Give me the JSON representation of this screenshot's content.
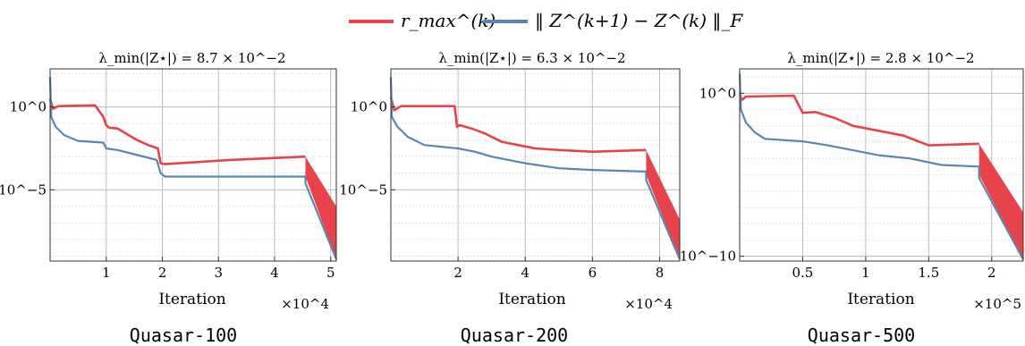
{
  "legend": {
    "entries": [
      {
        "label": "r_max^(k)",
        "color": "#e8424b"
      },
      {
        "label": "‖ Z^(k+1) − Z^(k) ‖_F",
        "color": "#5a86b0"
      }
    ]
  },
  "chart_data": [
    {
      "type": "line",
      "caption": "Quasar-100",
      "title": "λ_min(|Z⋆|) = 8.7 × 10^−2",
      "xlabel": "Iteration",
      "x_multiplier": "×10^4",
      "y_log": true,
      "xlim": [
        0,
        5.1
      ],
      "ylim_exp": [
        -9.3,
        2.3
      ],
      "x_ticks": [
        1,
        2,
        3,
        4,
        5
      ],
      "y_ticks": [
        {
          "exp": 0,
          "label": "10^0"
        },
        {
          "exp": -5,
          "label": "10^−5"
        }
      ],
      "grid": true,
      "series": [
        {
          "name": "r_max^(k)",
          "color": "#e8424b",
          "points": [
            [
              0,
              0.5
            ],
            [
              0.05,
              -0.1
            ],
            [
              0.15,
              0.05
            ],
            [
              0.8,
              0.1
            ],
            [
              0.95,
              -0.6
            ],
            [
              1.0,
              -1.1
            ],
            [
              1.05,
              -1.25
            ],
            [
              1.2,
              -1.3
            ],
            [
              1.35,
              -1.6
            ],
            [
              1.55,
              -2.0
            ],
            [
              1.75,
              -2.3
            ],
            [
              1.92,
              -2.5
            ],
            [
              1.97,
              -3.4
            ],
            [
              2.05,
              -3.45
            ],
            [
              3.2,
              -3.2
            ],
            [
              4.55,
              -3.0
            ]
          ],
          "band": {
            "x": [
              4.55,
              5.1
            ],
            "upper": [
              -3.0,
              -6.0
            ],
            "lower": [
              -4.2,
              -9.2
            ]
          }
        },
        {
          "name": "‖ Z^(k+1) − Z^(k) ‖_F",
          "color": "#5a86b0",
          "points": [
            [
              0,
              1.8
            ],
            [
              0.02,
              -0.6
            ],
            [
              0.1,
              -1.2
            ],
            [
              0.25,
              -1.7
            ],
            [
              0.5,
              -2.05
            ],
            [
              0.95,
              -2.15
            ],
            [
              1.0,
              -2.5
            ],
            [
              1.2,
              -2.6
            ],
            [
              1.5,
              -2.85
            ],
            [
              1.9,
              -3.2
            ],
            [
              1.97,
              -4.0
            ],
            [
              2.05,
              -4.2
            ],
            [
              4.55,
              -4.2
            ],
            [
              4.55,
              -4.6
            ],
            [
              5.1,
              -9.2
            ]
          ]
        }
      ]
    },
    {
      "type": "line",
      "caption": "Quasar-200",
      "title": "λ_min(|Z⋆|) = 6.3 × 10^−2",
      "xlabel": "Iteration",
      "x_multiplier": "×10^4",
      "y_log": true,
      "xlim": [
        0,
        8.6
      ],
      "ylim_exp": [
        -9.3,
        2.3
      ],
      "x_ticks": [
        2,
        4,
        6,
        8
      ],
      "y_ticks": [
        {
          "exp": 0,
          "label": "10^0"
        },
        {
          "exp": -5,
          "label": "10^−5"
        }
      ],
      "grid": true,
      "series": [
        {
          "name": "r_max^(k)",
          "color": "#e8424b",
          "points": [
            [
              0,
              0.6
            ],
            [
              0.1,
              -0.2
            ],
            [
              0.3,
              0.05
            ],
            [
              1.9,
              0.05
            ],
            [
              1.97,
              -1.2
            ],
            [
              2.05,
              -1.1
            ],
            [
              2.4,
              -1.3
            ],
            [
              2.8,
              -1.6
            ],
            [
              3.3,
              -2.1
            ],
            [
              3.8,
              -2.3
            ],
            [
              4.3,
              -2.5
            ],
            [
              5.0,
              -2.6
            ],
            [
              6.0,
              -2.7
            ],
            [
              7.6,
              -2.6
            ]
          ],
          "band": {
            "x": [
              7.6,
              8.6
            ],
            "upper": [
              -2.6,
              -6.8
            ],
            "lower": [
              -4.1,
              -9.2
            ]
          }
        },
        {
          "name": "‖ Z^(k+1) − Z^(k) ‖_F",
          "color": "#5a86b0",
          "points": [
            [
              0,
              1.8
            ],
            [
              0.03,
              -0.6
            ],
            [
              0.2,
              -1.2
            ],
            [
              0.5,
              -1.8
            ],
            [
              1.0,
              -2.3
            ],
            [
              1.5,
              -2.4
            ],
            [
              2.0,
              -2.5
            ],
            [
              2.5,
              -2.7
            ],
            [
              3.0,
              -3.0
            ],
            [
              3.5,
              -3.2
            ],
            [
              4.0,
              -3.4
            ],
            [
              5.0,
              -3.7
            ],
            [
              6.0,
              -3.8
            ],
            [
              7.6,
              -3.9
            ],
            [
              7.6,
              -4.4
            ],
            [
              8.6,
              -9.2
            ]
          ]
        }
      ]
    },
    {
      "type": "line",
      "caption": "Quasar-500",
      "title": "λ_min(|Z⋆|) = 2.8 × 10^−2",
      "xlabel": "Iteration",
      "x_multiplier": "×10^5",
      "y_log": true,
      "xlim": [
        0,
        2.25
      ],
      "ylim_exp": [
        -10.3,
        1.5
      ],
      "x_ticks": [
        0.5,
        1,
        1.5,
        2
      ],
      "y_ticks": [
        {
          "exp": 0,
          "label": "10^0"
        },
        {
          "exp": -10,
          "label": "10^−10"
        }
      ],
      "grid": true,
      "series": [
        {
          "name": "r_max^(k)",
          "color": "#e8424b",
          "points": [
            [
              0,
              -0.1
            ],
            [
              0.02,
              -0.4
            ],
            [
              0.05,
              -0.2
            ],
            [
              0.43,
              -0.15
            ],
            [
              0.5,
              -1.2
            ],
            [
              0.6,
              -1.15
            ],
            [
              0.75,
              -1.5
            ],
            [
              0.9,
              -2.0
            ],
            [
              1.1,
              -2.3
            ],
            [
              1.3,
              -2.6
            ],
            [
              1.5,
              -3.2
            ],
            [
              1.9,
              -3.1
            ]
          ],
          "band": {
            "x": [
              1.9,
              2.25
            ],
            "upper": [
              -3.1,
              -7.3
            ],
            "lower": [
              -5.0,
              -10.2
            ]
          }
        },
        {
          "name": "‖ Z^(k+1) − Z^(k) ‖_F",
          "color": "#5a86b0",
          "points": [
            [
              0,
              1.2
            ],
            [
              0.01,
              -1.0
            ],
            [
              0.05,
              -1.8
            ],
            [
              0.12,
              -2.4
            ],
            [
              0.2,
              -2.8
            ],
            [
              0.5,
              -2.95
            ],
            [
              0.7,
              -3.2
            ],
            [
              0.9,
              -3.5
            ],
            [
              1.1,
              -3.8
            ],
            [
              1.35,
              -4.0
            ],
            [
              1.6,
              -4.4
            ],
            [
              1.9,
              -4.5
            ],
            [
              1.9,
              -5.2
            ],
            [
              2.25,
              -10.2
            ]
          ]
        }
      ]
    }
  ]
}
